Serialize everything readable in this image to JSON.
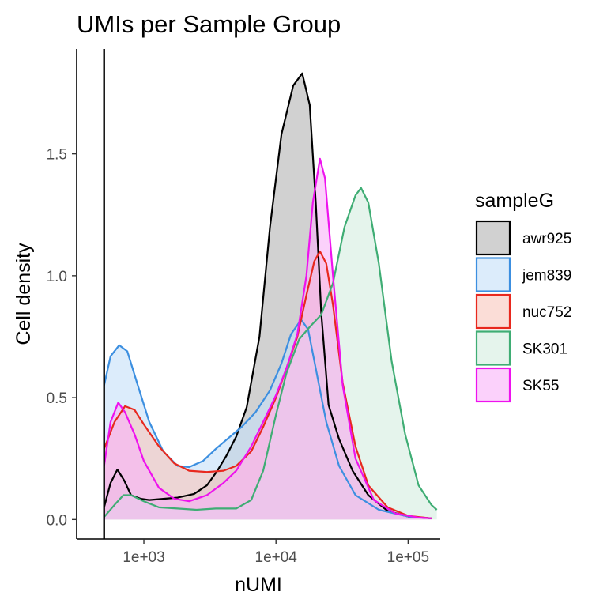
{
  "chart_data": {
    "type": "area",
    "title": "UMIs per Sample Group",
    "xlabel": "nUMI",
    "ylabel": "Cell density",
    "x_scale": "log10",
    "xlim": [
      310,
      175000
    ],
    "ylim": [
      -0.08,
      1.93
    ],
    "x_ticks": [
      1000,
      10000,
      100000
    ],
    "x_tick_labels": [
      "1e+03",
      "1e+04",
      "1e+05"
    ],
    "y_ticks": [
      0,
      0.5,
      1.0,
      1.5
    ],
    "y_tick_labels": [
      "0.0",
      "0.5",
      "1.0",
      "1.5"
    ],
    "threshold_line_x": 500,
    "grid": false,
    "legend": {
      "title": "sampleG",
      "position": "right"
    },
    "series": [
      {
        "name": "awr925",
        "color": "#000000",
        "fill": "#b3b3b3",
        "points": [
          [
            500,
            0.05
          ],
          [
            560,
            0.15
          ],
          [
            630,
            0.205
          ],
          [
            710,
            0.16
          ],
          [
            800,
            0.1
          ],
          [
            950,
            0.085
          ],
          [
            1100,
            0.08
          ],
          [
            1400,
            0.085
          ],
          [
            1800,
            0.09
          ],
          [
            2400,
            0.105
          ],
          [
            3000,
            0.14
          ],
          [
            3600,
            0.2
          ],
          [
            4200,
            0.26
          ],
          [
            5000,
            0.34
          ],
          [
            6000,
            0.46
          ],
          [
            7500,
            0.75
          ],
          [
            9000,
            1.2
          ],
          [
            11000,
            1.58
          ],
          [
            13500,
            1.78
          ],
          [
            15800,
            1.83
          ],
          [
            18000,
            1.7
          ],
          [
            20000,
            1.3
          ],
          [
            22000,
            0.85
          ],
          [
            25000,
            0.47
          ],
          [
            30000,
            0.33
          ],
          [
            38000,
            0.2
          ],
          [
            50000,
            0.1
          ],
          [
            70000,
            0.035
          ],
          [
            100000,
            0.012
          ],
          [
            150000,
            0.005
          ]
        ]
      },
      {
        "name": "jem839",
        "color": "#3c8fe0",
        "fill": "#c4dff8",
        "points": [
          [
            500,
            0.55
          ],
          [
            560,
            0.67
          ],
          [
            650,
            0.715
          ],
          [
            750,
            0.69
          ],
          [
            900,
            0.55
          ],
          [
            1100,
            0.4
          ],
          [
            1400,
            0.28
          ],
          [
            1800,
            0.22
          ],
          [
            2200,
            0.215
          ],
          [
            2800,
            0.24
          ],
          [
            3500,
            0.29
          ],
          [
            4500,
            0.34
          ],
          [
            5500,
            0.38
          ],
          [
            7000,
            0.44
          ],
          [
            9000,
            0.53
          ],
          [
            11000,
            0.64
          ],
          [
            13000,
            0.76
          ],
          [
            15500,
            0.82
          ],
          [
            17500,
            0.78
          ],
          [
            20000,
            0.62
          ],
          [
            24000,
            0.4
          ],
          [
            30000,
            0.22
          ],
          [
            40000,
            0.1
          ],
          [
            60000,
            0.04
          ],
          [
            100000,
            0.012
          ],
          [
            150000,
            0.005
          ]
        ]
      },
      {
        "name": "nuc752",
        "color": "#e8281e",
        "fill": "#f8c6bd",
        "points": [
          [
            500,
            0.29
          ],
          [
            600,
            0.4
          ],
          [
            720,
            0.465
          ],
          [
            850,
            0.45
          ],
          [
            1000,
            0.39
          ],
          [
            1300,
            0.3
          ],
          [
            1700,
            0.23
          ],
          [
            2200,
            0.2
          ],
          [
            3000,
            0.195
          ],
          [
            4000,
            0.2
          ],
          [
            5000,
            0.22
          ],
          [
            6500,
            0.28
          ],
          [
            8000,
            0.38
          ],
          [
            10000,
            0.5
          ],
          [
            12000,
            0.62
          ],
          [
            14500,
            0.75
          ],
          [
            17000,
            0.92
          ],
          [
            19500,
            1.06
          ],
          [
            21500,
            1.1
          ],
          [
            24000,
            1.05
          ],
          [
            27000,
            0.88
          ],
          [
            32000,
            0.56
          ],
          [
            40000,
            0.3
          ],
          [
            50000,
            0.14
          ],
          [
            70000,
            0.05
          ],
          [
            100000,
            0.015
          ],
          [
            150000,
            0.005
          ]
        ]
      },
      {
        "name": "SK301",
        "color": "#3fad74",
        "fill": "#d3ecdf",
        "points": [
          [
            500,
            0.01
          ],
          [
            600,
            0.06
          ],
          [
            700,
            0.1
          ],
          [
            800,
            0.1
          ],
          [
            1000,
            0.075
          ],
          [
            1300,
            0.05
          ],
          [
            1800,
            0.045
          ],
          [
            2500,
            0.04
          ],
          [
            3500,
            0.045
          ],
          [
            5000,
            0.045
          ],
          [
            6500,
            0.08
          ],
          [
            8000,
            0.2
          ],
          [
            10000,
            0.43
          ],
          [
            12000,
            0.6
          ],
          [
            15000,
            0.74
          ],
          [
            18000,
            0.79
          ],
          [
            22000,
            0.84
          ],
          [
            27000,
            0.97
          ],
          [
            33000,
            1.2
          ],
          [
            40000,
            1.33
          ],
          [
            44000,
            1.36
          ],
          [
            50000,
            1.3
          ],
          [
            60000,
            1.05
          ],
          [
            75000,
            0.65
          ],
          [
            95000,
            0.35
          ],
          [
            120000,
            0.14
          ],
          [
            150000,
            0.06
          ],
          [
            165000,
            0.04
          ]
        ]
      },
      {
        "name": "SK55",
        "color": "#ee12ee",
        "fill": "#f9b3f9",
        "points": [
          [
            500,
            0.22
          ],
          [
            560,
            0.4
          ],
          [
            640,
            0.48
          ],
          [
            720,
            0.44
          ],
          [
            850,
            0.35
          ],
          [
            1000,
            0.24
          ],
          [
            1300,
            0.13
          ],
          [
            1700,
            0.085
          ],
          [
            2200,
            0.075
          ],
          [
            3000,
            0.1
          ],
          [
            4000,
            0.15
          ],
          [
            5000,
            0.2
          ],
          [
            6500,
            0.3
          ],
          [
            8000,
            0.4
          ],
          [
            10000,
            0.51
          ],
          [
            12000,
            0.62
          ],
          [
            14500,
            0.76
          ],
          [
            17000,
            1.0
          ],
          [
            19000,
            1.3
          ],
          [
            21500,
            1.48
          ],
          [
            23500,
            1.4
          ],
          [
            27000,
            1.0
          ],
          [
            32000,
            0.55
          ],
          [
            40000,
            0.25
          ],
          [
            55000,
            0.08
          ],
          [
            80000,
            0.025
          ],
          [
            120000,
            0.008
          ],
          [
            150000,
            0.005
          ]
        ]
      }
    ]
  }
}
